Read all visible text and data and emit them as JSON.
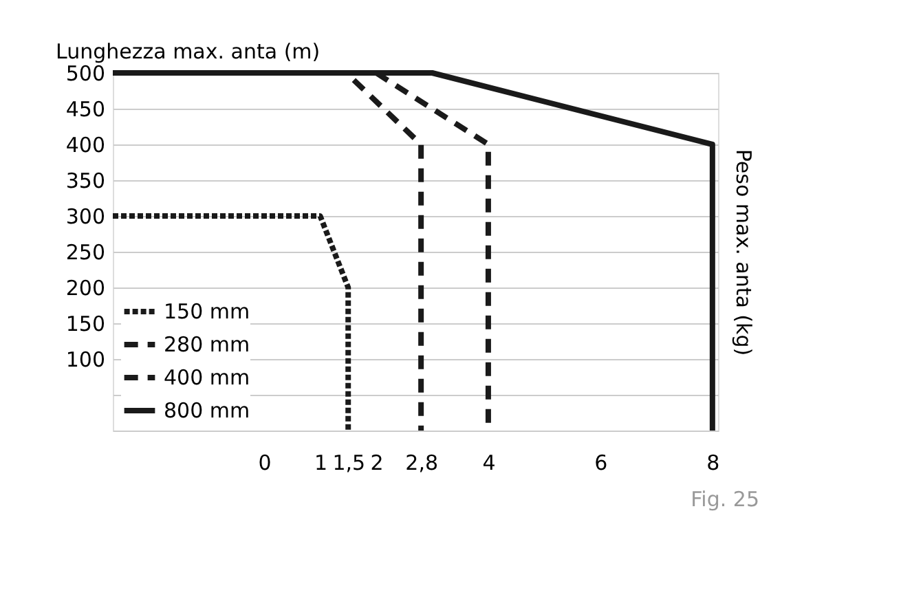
{
  "chart_data": {
    "type": "line",
    "ylabel": "Lunghezza max. anta (m)",
    "y2label": "Peso max. anta (kg)",
    "annotations": [
      "Fig. 25"
    ],
    "xlim": [
      -2.7,
      8.1
    ],
    "xticks": [
      0,
      1,
      {
        "value": 1.5,
        "label": "1,5"
      },
      2,
      {
        "value": 2.8,
        "label": "2,8"
      },
      4,
      6,
      8
    ],
    "ylim": [
      0,
      500
    ],
    "yticks": [
      {
        "value": 0,
        "label": null
      },
      {
        "value": 50,
        "label": null
      },
      100,
      150,
      200,
      250,
      300,
      350,
      400,
      450,
      500
    ],
    "grid": "y",
    "legend": "bottom left",
    "marker": "none",
    "series": [
      {
        "name": "150 mm",
        "color": "#1a1a1a",
        "line_style": "dotted",
        "x": [
          -2.7,
          1.0,
          1.5,
          1.5
        ],
        "values": [
          300,
          300,
          200,
          0
        ]
      },
      {
        "name": "280 mm",
        "color": "#1a1a1a",
        "line_style": "dashed",
        "x": [
          1.6,
          2.8,
          2.8
        ],
        "values": [
          490,
          400,
          0
        ]
      },
      {
        "name": "400 mm",
        "color": "#1a1a1a",
        "line_style": "dashed",
        "x": [
          2.0,
          4,
          4
        ],
        "values": [
          500,
          400,
          0
        ]
      },
      {
        "name": "800 mm",
        "color": "#1a1a1a",
        "line_style": "solid",
        "x": [
          -2.7,
          3.0,
          8,
          8
        ],
        "values": [
          500,
          500,
          400,
          0
        ]
      }
    ]
  }
}
